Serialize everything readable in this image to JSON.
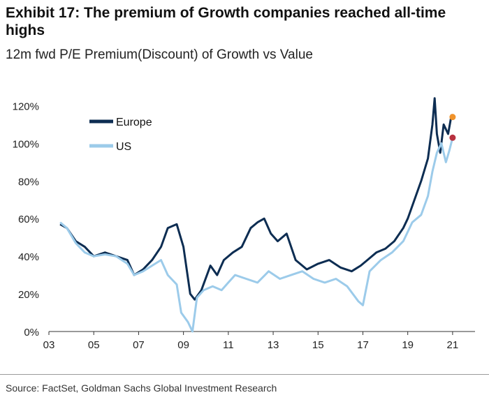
{
  "title": "Exhibit 17: The premium of Growth companies reached all-time highs",
  "subtitle": "12m fwd P/E Premium(Discount) of Growth vs Value",
  "source": "Source: FactSet, Goldman Sachs Global Investment Research",
  "colors": {
    "europe": "#0d2d52",
    "us": "#9ccbea",
    "europe_end_dot": "#f0932b",
    "us_end_dot": "#b8313f"
  },
  "chart_data": {
    "type": "line",
    "title": "Exhibit 17: The premium of Growth companies reached all-time highs",
    "subtitle": "12m fwd P/E Premium(Discount) of Growth vs Value",
    "xlabel": "",
    "ylabel": "",
    "xlim": [
      2003.0,
      2022.0
    ],
    "ylim": [
      0,
      125
    ],
    "x_ticks": [
      2003,
      2005,
      2007,
      2009,
      2011,
      2013,
      2015,
      2017,
      2019,
      2021
    ],
    "x_tick_labels": [
      "03",
      "05",
      "07",
      "09",
      "11",
      "13",
      "15",
      "17",
      "19",
      "21"
    ],
    "y_ticks": [
      0,
      20,
      40,
      60,
      80,
      100,
      120
    ],
    "y_tick_labels": [
      "0%",
      "20%",
      "40%",
      "60%",
      "80%",
      "100%",
      "120%"
    ],
    "grid": false,
    "legend_position": "top-left",
    "series": [
      {
        "name": "Europe",
        "x": [
          2003.5,
          2003.8,
          2004.2,
          2004.6,
          2005.0,
          2005.5,
          2006.0,
          2006.5,
          2006.8,
          2007.2,
          2007.6,
          2008.0,
          2008.3,
          2008.7,
          2009.0,
          2009.3,
          2009.5,
          2009.8,
          2010.2,
          2010.5,
          2010.8,
          2011.2,
          2011.6,
          2012.0,
          2012.3,
          2012.6,
          2012.9,
          2013.2,
          2013.6,
          2014.0,
          2014.5,
          2015.0,
          2015.5,
          2016.0,
          2016.5,
          2016.9,
          2017.2,
          2017.6,
          2018.0,
          2018.4,
          2018.8,
          2019.0,
          2019.3,
          2019.6,
          2019.9,
          2020.1,
          2020.2,
          2020.3,
          2020.45,
          2020.6,
          2020.8,
          2020.95,
          2021.0
        ],
        "values": [
          57,
          55,
          48,
          45,
          40,
          42,
          40,
          38,
          30,
          33,
          38,
          45,
          55,
          57,
          45,
          20,
          17,
          22,
          35,
          30,
          38,
          42,
          45,
          55,
          58,
          60,
          52,
          48,
          52,
          38,
          33,
          36,
          38,
          34,
          32,
          35,
          38,
          42,
          44,
          48,
          55,
          60,
          70,
          80,
          92,
          110,
          124,
          105,
          95,
          110,
          105,
          115,
          114
        ]
      },
      {
        "name": "US",
        "x": [
          2003.5,
          2003.8,
          2004.2,
          2004.6,
          2005.0,
          2005.5,
          2006.0,
          2006.5,
          2006.8,
          2007.2,
          2007.6,
          2008.0,
          2008.3,
          2008.7,
          2008.9,
          2009.2,
          2009.4,
          2009.6,
          2009.9,
          2010.3,
          2010.7,
          2011.0,
          2011.3,
          2011.8,
          2012.3,
          2012.8,
          2013.3,
          2013.8,
          2014.3,
          2014.8,
          2015.3,
          2015.8,
          2016.3,
          2016.8,
          2017.0,
          2017.3,
          2017.8,
          2018.3,
          2018.8,
          2019.2,
          2019.6,
          2019.9,
          2020.1,
          2020.3,
          2020.5,
          2020.7,
          2020.85,
          2021.0
        ],
        "values": [
          58,
          55,
          47,
          42,
          40,
          41,
          40,
          36,
          30,
          32,
          35,
          38,
          30,
          25,
          10,
          5,
          0,
          18,
          22,
          24,
          22,
          26,
          30,
          28,
          26,
          32,
          28,
          30,
          32,
          28,
          26,
          28,
          24,
          16,
          14,
          32,
          38,
          42,
          48,
          58,
          62,
          72,
          85,
          95,
          100,
          90,
          96,
          103
        ]
      }
    ],
    "end_markers": [
      {
        "series": "Europe",
        "x": 2021.0,
        "y": 114
      },
      {
        "series": "US",
        "x": 2021.0,
        "y": 103
      }
    ]
  }
}
